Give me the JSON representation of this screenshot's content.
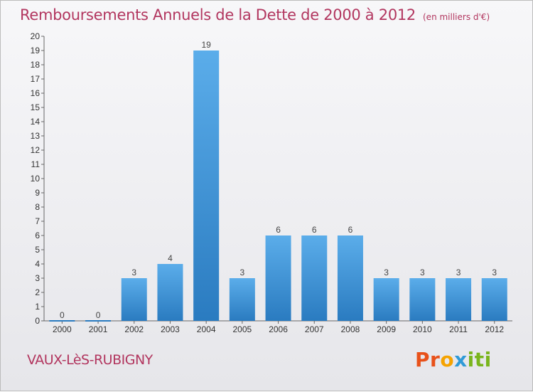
{
  "header": {
    "title": "Remboursements Annuels de la Dette de 2000 à 2012",
    "unit": "(en milliers d'€)"
  },
  "footer": {
    "commune": "VAUX-LèS-RUBIGNY",
    "logo": [
      "P",
      "r",
      "o",
      "x",
      "i",
      "t",
      "i"
    ],
    "logo_colors": [
      "#e8511a",
      "#e8511a",
      "#f5a300",
      "#2f9ad7",
      "#7ab51d",
      "#7ab51d",
      "#7ab51d"
    ]
  },
  "colors": {
    "accent": "#b2365f",
    "bar_light": "#5badea",
    "bar_dark": "#2a7bc0"
  },
  "chart_data": {
    "type": "bar",
    "title": "Remboursements Annuels de la Dette de 2000 à 2012",
    "categories": [
      "2000",
      "2001",
      "2002",
      "2003",
      "2004",
      "2005",
      "2006",
      "2007",
      "2008",
      "2009",
      "2010",
      "2011",
      "2012"
    ],
    "values": [
      0,
      0,
      3,
      4,
      19,
      3,
      6,
      6,
      6,
      3,
      3,
      3,
      3
    ],
    "data_labels": [
      "0",
      "0",
      "3",
      "4",
      "19",
      "3",
      "6",
      "6",
      "6",
      "3",
      "3",
      "3",
      "3"
    ],
    "ylim": [
      0,
      20
    ],
    "y_ticks": [
      "0",
      "1",
      "2",
      "3",
      "4",
      "5",
      "6",
      "7",
      "8",
      "9",
      "10",
      "11",
      "12",
      "13",
      "14",
      "15",
      "16",
      "17",
      "18",
      "19",
      "20"
    ],
    "grid": false
  }
}
